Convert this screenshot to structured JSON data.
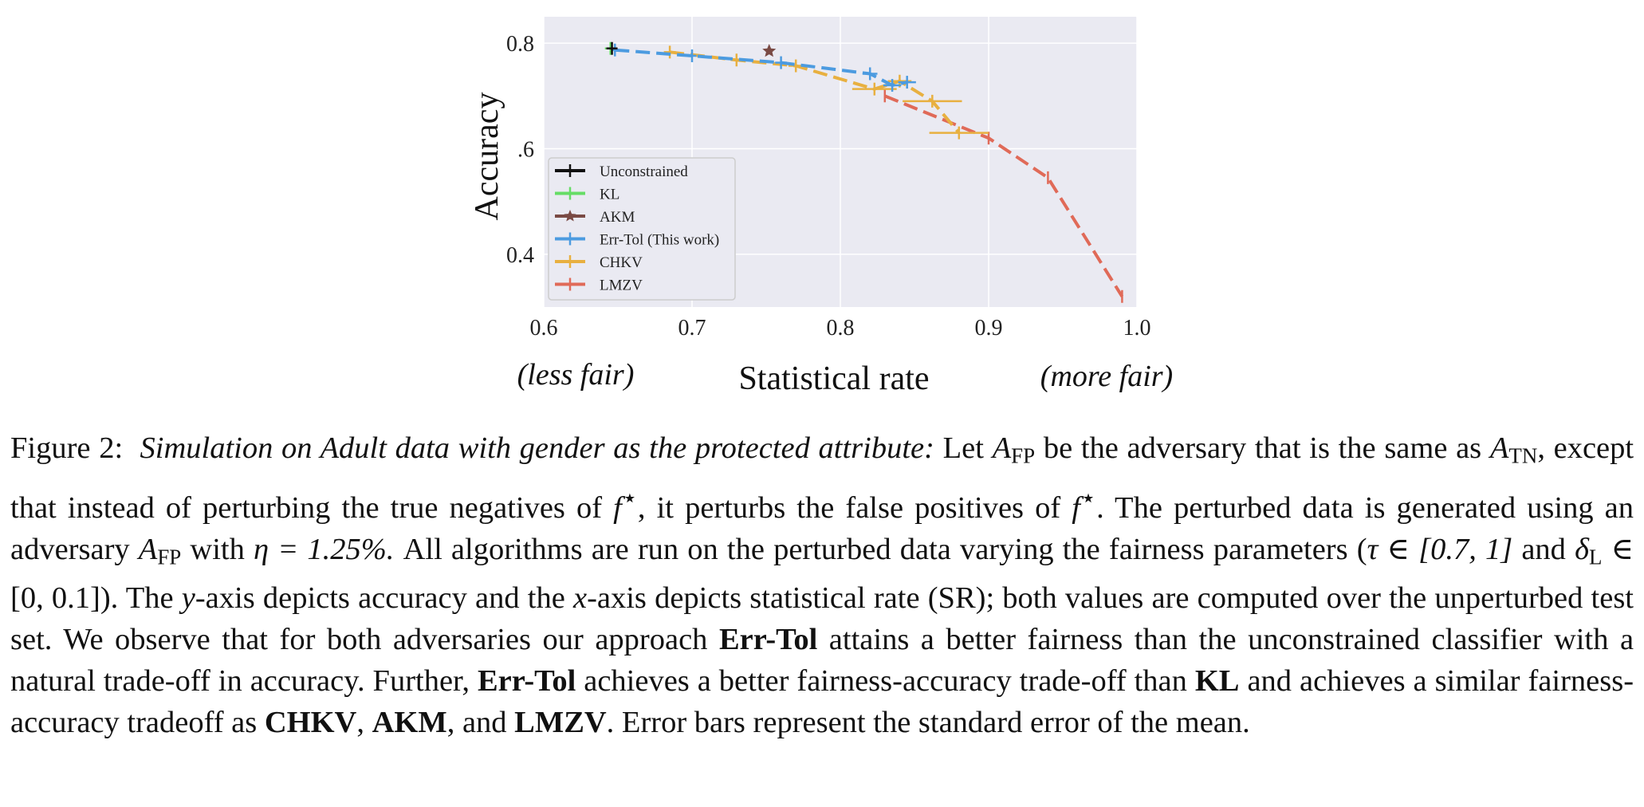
{
  "chart_data": {
    "type": "line",
    "xlabel": "Statistical rate",
    "ylabel": "Accuracy",
    "xlim": [
      0.6,
      1.0
    ],
    "ylim": [
      0.3,
      0.85
    ],
    "xticks": [
      0.6,
      0.7,
      0.8,
      0.9,
      1.0
    ],
    "xtick_labels": [
      "0.6",
      "0.7",
      "0.8",
      "0.9",
      "1.0"
    ],
    "yticks": [
      0.4,
      0.6,
      0.8
    ],
    "ytick_labels": [
      "0.4",
      ".6",
      "0.8"
    ],
    "x_annotation_left": "(less fair)",
    "x_annotation_right": "(more fair)",
    "grid": true,
    "legend_position": "lower-left",
    "series": [
      {
        "name": "Unconstrained",
        "color": "#111111",
        "marker": "plus",
        "x": [
          0.646
        ],
        "y": [
          0.79
        ],
        "xerr": [
          0.002
        ]
      },
      {
        "name": "KL",
        "color": "#66dd66",
        "marker": "plus",
        "x": [
          0.645
        ],
        "y": [
          0.79
        ],
        "xerr": [
          0.002
        ]
      },
      {
        "name": "AKM",
        "color": "#7a4a44",
        "marker": "star",
        "x": [
          0.752
        ],
        "y": [
          0.785
        ],
        "xerr": [
          0.0
        ]
      },
      {
        "name": "Err-Tol (This work)",
        "color": "#4c9be0",
        "marker": "plus",
        "x": [
          0.648,
          0.7,
          0.76,
          0.82,
          0.835,
          0.845
        ],
        "y": [
          0.787,
          0.776,
          0.763,
          0.742,
          0.72,
          0.726
        ],
        "xerr": [
          0.003,
          0.003,
          0.004,
          0.005,
          0.006,
          0.006
        ]
      },
      {
        "name": "CHKV",
        "color": "#e8b040",
        "marker": "plus",
        "x": [
          0.685,
          0.73,
          0.77,
          0.823,
          0.84,
          0.862,
          0.88
        ],
        "y": [
          0.783,
          0.768,
          0.757,
          0.713,
          0.728,
          0.69,
          0.63
        ],
        "xerr": [
          0.004,
          0.004,
          0.005,
          0.015,
          0.008,
          0.02,
          0.02
        ]
      },
      {
        "name": "LMZV",
        "color": "#e06a58",
        "marker": "plus",
        "x": [
          0.83,
          0.9,
          0.94,
          0.99
        ],
        "y": [
          0.7,
          0.62,
          0.545,
          0.32
        ],
        "xerr": [
          0.0,
          0.0,
          0.0,
          0.0
        ]
      }
    ]
  },
  "caption": {
    "label": "Figure 2:",
    "title": "Simulation on Adult data with gender as the protected attribute:",
    "s1": "Let",
    "A": "A",
    "FP": "FP",
    "TN": "TN",
    "s2": "be the adversary that is the same as",
    "s3": ", except that instead of perturbing the true negatives of",
    "f": "f",
    "star": "⋆",
    "s4": ", it perturbs the false positives of",
    "s5": ". The perturbed data is generated using an adversary",
    "s6": "with",
    "eta": "η = 1.25%.",
    "s7": "All algorithms are run on the perturbed data varying the fairness parameters (",
    "tau": "τ ∈ [0.7, 1]",
    "and1": "and",
    "delta": "δ",
    "L": "L",
    "deltarange": "∈ [0, 0.1]",
    "s8": "). The",
    "y": "y",
    "s9": "-axis depicts accuracy and the",
    "x": "x",
    "s10": "-axis depicts statistical rate (SR); both values are computed over the unperturbed test set. We observe that for both adversaries our approach",
    "errtol": "Err-Tol",
    "s11": "attains a better fairness than the unconstrained classifier with a natural trade-off in accuracy. Further,",
    "errtol2": "Err-Tol",
    "s12": "achieves a better fairness-accuracy trade-off than",
    "kl": "KL",
    "s13": "and achieves a similar fairness-accuracy tradeoff as",
    "chkv": "CHKV",
    "comma1": ",",
    "akm": "AKM",
    "s14": ", and",
    "lmzv": "LMZV",
    "s15": ". Error bars represent the standard error of the mean."
  }
}
